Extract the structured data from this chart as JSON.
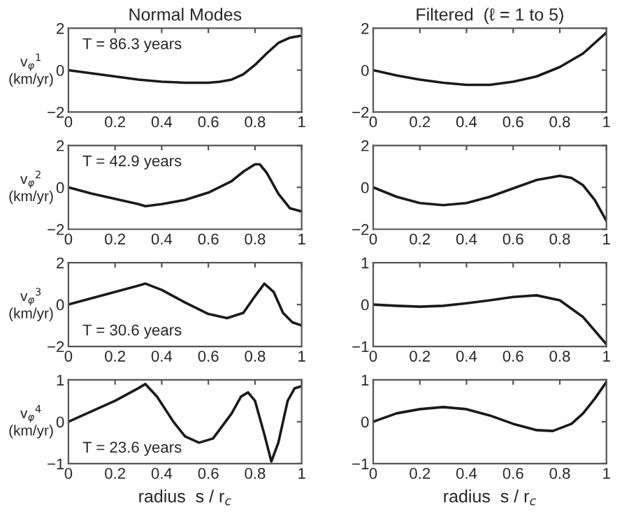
{
  "chart_data": [
    {
      "type": "line",
      "title": "Normal Modes",
      "ylabel": "v$_{φ}$$^{1}$\n(km/yr)",
      "annotations": [
        "T = 86.3 years"
      ],
      "x": [
        0,
        0.1,
        0.2,
        0.3,
        0.4,
        0.5,
        0.6,
        0.65,
        0.7,
        0.75,
        0.8,
        0.85,
        0.9,
        0.95,
        1.0
      ],
      "xlim": [
        0,
        1
      ],
      "ylim": [
        -2,
        2
      ],
      "xticks": [
        0,
        0.2,
        0.4,
        0.6,
        0.8,
        1
      ],
      "yticks": [
        -2,
        0,
        2
      ],
      "grid": false,
      "series": [
        {
          "color": "#1a1a1a",
          "values": [
            0,
            -0.15,
            -0.3,
            -0.45,
            -0.55,
            -0.6,
            -0.6,
            -0.55,
            -0.45,
            -0.2,
            0.25,
            0.8,
            1.3,
            1.55,
            1.65
          ]
        }
      ]
    },
    {
      "type": "line",
      "title": "Filtered  (ℓ = 1 to 5)",
      "x": [
        0,
        0.1,
        0.2,
        0.3,
        0.4,
        0.5,
        0.6,
        0.7,
        0.8,
        0.9,
        1.0
      ],
      "xlim": [
        0,
        1
      ],
      "ylim": [
        -2,
        2
      ],
      "xticks": [
        0,
        0.2,
        0.4,
        0.6,
        0.8,
        1
      ],
      "yticks": [
        -2,
        0,
        2
      ],
      "grid": false,
      "series": [
        {
          "color": "#1a1a1a",
          "values": [
            0,
            -0.25,
            -0.45,
            -0.6,
            -0.7,
            -0.7,
            -0.55,
            -0.3,
            0.15,
            0.8,
            1.8
          ]
        }
      ]
    },
    {
      "type": "line",
      "ylabel": "v$_{φ}$$^{2}$\n(km/yr)",
      "annotations": [
        "T = 42.9 years"
      ],
      "x": [
        0,
        0.1,
        0.2,
        0.3,
        0.33,
        0.4,
        0.5,
        0.6,
        0.7,
        0.75,
        0.8,
        0.82,
        0.85,
        0.9,
        0.95,
        1.0
      ],
      "xlim": [
        0,
        1
      ],
      "ylim": [
        -2,
        2
      ],
      "xticks": [
        0,
        0.2,
        0.4,
        0.6,
        0.8,
        1
      ],
      "yticks": [
        -2,
        0,
        2
      ],
      "grid": false,
      "series": [
        {
          "color": "#1a1a1a",
          "values": [
            0,
            -0.3,
            -0.55,
            -0.8,
            -0.9,
            -0.8,
            -0.6,
            -0.25,
            0.3,
            0.75,
            1.1,
            1.1,
            0.7,
            -0.3,
            -1.0,
            -1.15
          ]
        }
      ]
    },
    {
      "type": "line",
      "x": [
        0,
        0.1,
        0.2,
        0.3,
        0.4,
        0.5,
        0.6,
        0.7,
        0.8,
        0.85,
        0.9,
        0.95,
        1.0
      ],
      "xlim": [
        0,
        1
      ],
      "ylim": [
        -2,
        2
      ],
      "xticks": [
        0,
        0.2,
        0.4,
        0.6,
        0.8,
        1
      ],
      "yticks": [
        -2,
        0,
        2
      ],
      "grid": false,
      "series": [
        {
          "color": "#1a1a1a",
          "values": [
            0,
            -0.45,
            -0.75,
            -0.85,
            -0.75,
            -0.45,
            -0.05,
            0.35,
            0.55,
            0.45,
            0.1,
            -0.6,
            -1.6
          ]
        }
      ]
    },
    {
      "type": "line",
      "ylabel": "v$_{φ}$$^{3}$\n(km/yr)",
      "annotations": [
        "T = 30.6 years"
      ],
      "x": [
        0,
        0.1,
        0.2,
        0.3,
        0.33,
        0.4,
        0.5,
        0.6,
        0.68,
        0.75,
        0.8,
        0.84,
        0.88,
        0.92,
        0.96,
        1.0
      ],
      "xlim": [
        0,
        1
      ],
      "ylim": [
        -2,
        2
      ],
      "xticks": [
        0,
        0.2,
        0.4,
        0.6,
        0.8,
        1
      ],
      "yticks": [
        -2,
        0,
        2
      ],
      "grid": false,
      "series": [
        {
          "color": "#1a1a1a",
          "values": [
            0,
            0.3,
            0.6,
            0.9,
            1.0,
            0.7,
            0.1,
            -0.45,
            -0.65,
            -0.4,
            0.4,
            1.0,
            0.6,
            -0.4,
            -0.85,
            -1.0
          ]
        }
      ]
    },
    {
      "type": "line",
      "x": [
        0,
        0.1,
        0.2,
        0.3,
        0.4,
        0.5,
        0.6,
        0.7,
        0.8,
        0.9,
        1.0
      ],
      "xlim": [
        0,
        1
      ],
      "ylim": [
        -1,
        1
      ],
      "xticks": [
        0,
        0.2,
        0.4,
        0.6,
        0.8,
        1
      ],
      "yticks": [
        -1,
        0,
        1
      ],
      "grid": false,
      "series": [
        {
          "color": "#1a1a1a",
          "values": [
            0,
            -0.03,
            -0.05,
            -0.03,
            0.03,
            0.1,
            0.18,
            0.22,
            0.1,
            -0.3,
            -0.95
          ]
        }
      ]
    },
    {
      "type": "line",
      "ylabel": "v$_{φ}$$^{4}$\n(km/yr)",
      "xlabel": "radius  s / r$_{c}$",
      "annotations": [
        "T = 23.6 years"
      ],
      "x": [
        0,
        0.1,
        0.2,
        0.3,
        0.33,
        0.38,
        0.45,
        0.5,
        0.56,
        0.62,
        0.7,
        0.74,
        0.77,
        0.8,
        0.84,
        0.87,
        0.9,
        0.94,
        0.97,
        1.0
      ],
      "xlim": [
        0,
        1
      ],
      "ylim": [
        -1,
        1
      ],
      "xticks": [
        0,
        0.2,
        0.4,
        0.6,
        0.8,
        1
      ],
      "yticks": [
        -1,
        0,
        1
      ],
      "grid": false,
      "series": [
        {
          "color": "#1a1a1a",
          "values": [
            0,
            0.25,
            0.5,
            0.8,
            0.9,
            0.6,
            0.0,
            -0.35,
            -0.5,
            -0.4,
            0.2,
            0.6,
            0.7,
            0.5,
            -0.3,
            -0.95,
            -0.5,
            0.5,
            0.8,
            0.85
          ]
        }
      ]
    },
    {
      "type": "line",
      "xlabel": "radius  s / r$_{c}$",
      "x": [
        0,
        0.1,
        0.2,
        0.3,
        0.4,
        0.5,
        0.6,
        0.7,
        0.77,
        0.85,
        0.9,
        0.95,
        1.0
      ],
      "xlim": [
        0,
        1
      ],
      "ylim": [
        -1,
        1
      ],
      "xticks": [
        0,
        0.2,
        0.4,
        0.6,
        0.8,
        1
      ],
      "yticks": [
        -1,
        0,
        1
      ],
      "grid": false,
      "series": [
        {
          "color": "#1a1a1a",
          "values": [
            0,
            0.2,
            0.3,
            0.35,
            0.3,
            0.15,
            -0.05,
            -0.2,
            -0.22,
            -0.05,
            0.2,
            0.55,
            0.95
          ]
        }
      ]
    }
  ]
}
